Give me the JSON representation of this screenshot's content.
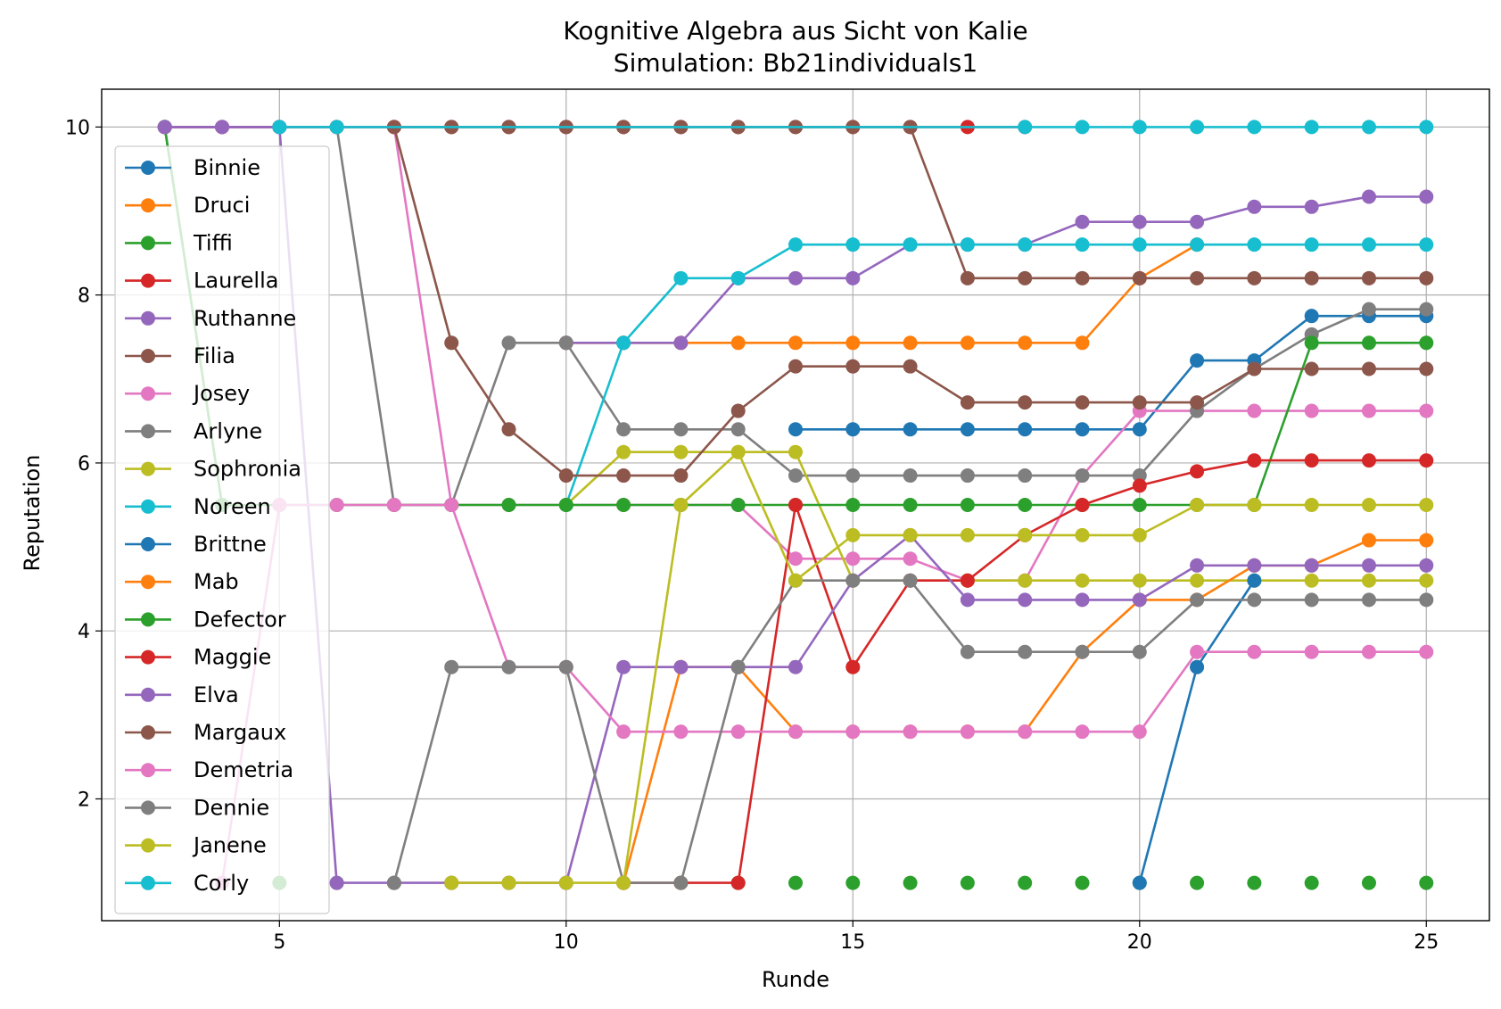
{
  "chart_data": {
    "type": "line",
    "title": "Kognitive Algebra aus Sicht von Kalie",
    "subtitle": "Simulation: Bb21individuals1",
    "xlabel": "Runde",
    "ylabel": "Reputation",
    "xlim": [
      1.9,
      26.1
    ],
    "ylim": [
      0.55,
      10.45
    ],
    "xticks": [
      5,
      10,
      15,
      20,
      25
    ],
    "yticks": [
      2,
      4,
      6,
      8,
      10
    ],
    "grid": true,
    "legend_position": "upper-left",
    "series": [
      {
        "name": "Binnie",
        "color": "#1f77b4",
        "x": [
          14,
          15,
          16,
          17,
          18,
          19,
          20,
          21,
          22,
          23,
          24,
          25
        ],
        "y": [
          6.4,
          6.4,
          6.4,
          6.4,
          6.4,
          6.4,
          6.4,
          7.22,
          7.22,
          7.75,
          7.75,
          7.75
        ]
      },
      {
        "name": "Druci",
        "color": "#ff7f0e",
        "x": [
          10,
          11,
          12,
          13,
          14,
          15,
          16,
          17,
          18,
          19,
          20,
          21
        ],
        "y": [
          7.43,
          7.43,
          7.43,
          7.43,
          7.43,
          7.43,
          7.43,
          7.43,
          7.43,
          7.43,
          8.2,
          8.6
        ]
      },
      {
        "name": "Tiffi",
        "color": "#2ca02c",
        "x": [
          3,
          4
        ],
        "y": [
          10,
          5.5
        ]
      },
      {
        "name": "Laurella",
        "color": "#d62728",
        "x": [
          3,
          4,
          5,
          6,
          7,
          8,
          9,
          10,
          11,
          12,
          13,
          14,
          15,
          16,
          17,
          18
        ],
        "y": [
          10,
          10,
          10,
          10,
          10,
          10,
          10,
          10,
          10,
          10,
          10,
          10,
          10,
          10,
          10,
          10
        ]
      },
      {
        "name": "Ruthanne",
        "color": "#9467bd",
        "x": [
          10,
          11,
          12,
          13,
          14,
          15,
          16,
          17,
          18,
          19,
          20,
          21,
          22,
          23,
          24,
          25
        ],
        "y": [
          7.43,
          7.43,
          7.43,
          8.2,
          8.2,
          8.2,
          8.6,
          8.6,
          8.6,
          8.87,
          8.87,
          8.87,
          9.05,
          9.05,
          9.17,
          9.17
        ]
      },
      {
        "name": "Filia",
        "color": "#8c564b",
        "x": [
          3,
          4,
          5,
          6,
          7,
          8,
          9,
          10,
          11,
          12,
          13,
          14,
          15,
          16,
          17,
          18,
          19,
          20,
          21,
          22,
          23,
          24,
          25
        ],
        "y": [
          10,
          10,
          10,
          10,
          10,
          10,
          10,
          10,
          10,
          10,
          10,
          10,
          10,
          10,
          8.2,
          8.2,
          8.2,
          8.2,
          8.2,
          8.2,
          8.2,
          8.2,
          8.2
        ]
      },
      {
        "name": "Josey",
        "color": "#e377c2",
        "x": [
          3,
          4,
          5,
          6,
          7,
          8,
          9,
          10,
          11,
          12,
          13,
          14,
          15,
          16,
          17,
          18,
          19,
          20,
          21,
          22,
          23,
          24,
          25
        ],
        "y": [
          10,
          10,
          10,
          10,
          10,
          5.5,
          5.5,
          5.5,
          5.5,
          5.5,
          5.5,
          4.86,
          4.86,
          4.86,
          4.6,
          4.6,
          5.85,
          6.62,
          6.62,
          6.62,
          6.62,
          6.62,
          6.62
        ]
      },
      {
        "name": "Arlyne",
        "color": "#7f7f7f",
        "x": [
          5,
          6,
          7,
          8,
          9,
          10,
          11,
          12,
          13,
          14,
          15,
          16,
          17,
          18,
          19,
          20,
          21,
          22,
          23,
          24,
          25
        ],
        "y": [
          10,
          10,
          5.5,
          5.5,
          7.43,
          7.43,
          6.4,
          6.4,
          6.4,
          5.85,
          5.85,
          5.85,
          5.85,
          5.85,
          5.85,
          5.85,
          6.62,
          7.12,
          7.53,
          7.83,
          7.83
        ]
      },
      {
        "name": "Sophronia",
        "color": "#bcbd22",
        "x": [
          10,
          11,
          12,
          13,
          14,
          15,
          16,
          17,
          18,
          19,
          20,
          21,
          22,
          23,
          24,
          25
        ],
        "y": [
          5.5,
          6.13,
          6.13,
          6.13,
          6.13,
          4.6,
          4.6,
          4.6,
          4.6,
          4.6,
          4.6,
          4.6,
          4.6,
          4.6,
          4.6,
          4.6
        ]
      },
      {
        "name": "Noreen",
        "color": "#17becf",
        "x": [
          10,
          11,
          12,
          13,
          14,
          15,
          16,
          17,
          18,
          19,
          20,
          21,
          22,
          23,
          24,
          25
        ],
        "y": [
          5.5,
          7.43,
          8.2,
          8.2,
          8.6,
          8.6,
          8.6,
          8.6,
          8.6,
          8.6,
          8.6,
          8.6,
          8.6,
          8.6,
          8.6,
          8.6
        ]
      },
      {
        "name": "Brittne",
        "color": "#1f77b4",
        "x": [
          20,
          21,
          22
        ],
        "y": [
          1,
          3.57,
          4.6
        ]
      },
      {
        "name": "Mab",
        "color": "#ff7f0e",
        "x": [
          11,
          12,
          13,
          14,
          15,
          16,
          17,
          18,
          19,
          20,
          21,
          22,
          23,
          24,
          25
        ],
        "y": [
          1,
          3.57,
          3.57,
          2.8,
          2.8,
          2.8,
          2.8,
          2.8,
          3.75,
          4.37,
          4.37,
          4.78,
          4.78,
          5.08,
          5.08
        ]
      },
      {
        "name": "Defector",
        "color": "#2ca02c",
        "x": [
          3,
          4,
          5,
          6,
          7,
          8,
          9,
          10,
          11,
          12,
          13,
          14,
          15,
          16,
          17,
          18,
          19,
          20,
          21,
          22,
          23,
          24,
          25
        ],
        "y": [
          10,
          5.5,
          5.5,
          5.5,
          5.5,
          5.5,
          5.5,
          5.5,
          5.5,
          5.5,
          5.5,
          5.5,
          5.5,
          5.5,
          5.5,
          5.5,
          5.5,
          5.5,
          5.5,
          5.5,
          7.43,
          7.43,
          7.43
        ]
      },
      {
        "name": "Maggie",
        "color": "#d62728",
        "x": [
          11,
          12,
          13,
          14,
          15,
          16,
          17,
          18,
          19,
          20,
          21,
          22,
          23,
          24,
          25
        ],
        "y": [
          1,
          1,
          1,
          5.5,
          3.57,
          4.6,
          4.6,
          5.14,
          5.5,
          5.73,
          5.9,
          6.03,
          6.03,
          6.03,
          6.03
        ]
      },
      {
        "name": "Elva",
        "color": "#9467bd",
        "x": [
          3,
          4,
          5,
          6,
          7,
          8,
          9,
          10,
          11,
          12,
          13,
          14,
          15,
          16,
          17,
          18,
          19,
          20,
          21,
          22,
          23,
          24,
          25
        ],
        "y": [
          10,
          10,
          10,
          1,
          1,
          1,
          1,
          1,
          3.57,
          3.57,
          3.57,
          3.57,
          4.6,
          5.14,
          4.37,
          4.37,
          4.37,
          4.37,
          4.78,
          4.78,
          4.78,
          4.78,
          4.78
        ]
      },
      {
        "name": "Margaux",
        "color": "#8c564b",
        "x": [
          7,
          8,
          9,
          10,
          11,
          12,
          13,
          14,
          15,
          16,
          17,
          18,
          19,
          20,
          21,
          22,
          23,
          24,
          25
        ],
        "y": [
          10,
          7.43,
          6.4,
          5.85,
          5.85,
          5.85,
          6.62,
          7.15,
          7.15,
          7.15,
          6.72,
          6.72,
          6.72,
          6.72,
          6.72,
          7.12,
          7.12,
          7.12,
          7.12
        ]
      },
      {
        "name": "Demetria",
        "color": "#e377c2",
        "x": [
          4,
          5,
          6,
          7,
          8,
          9,
          10,
          11,
          12,
          13,
          14,
          15,
          16,
          17,
          18,
          19,
          20,
          21,
          22,
          23,
          24,
          25
        ],
        "y": [
          1,
          5.5,
          5.5,
          5.5,
          5.5,
          3.57,
          3.57,
          2.8,
          2.8,
          2.8,
          2.8,
          2.8,
          2.8,
          2.8,
          2.8,
          2.8,
          2.8,
          3.75,
          3.75,
          3.75,
          3.75,
          3.75
        ]
      },
      {
        "name": "Dennie",
        "color": "#7f7f7f",
        "x": [
          7,
          8,
          9,
          10,
          11,
          12,
          13,
          14,
          15,
          16,
          17,
          18,
          19,
          20,
          21,
          22,
          23,
          24,
          25
        ],
        "y": [
          1,
          3.57,
          3.57,
          3.57,
          1,
          1,
          3.57,
          4.6,
          4.6,
          4.6,
          3.75,
          3.75,
          3.75,
          3.75,
          4.37,
          4.37,
          4.37,
          4.37,
          4.37
        ]
      },
      {
        "name": "Janene",
        "color": "#bcbd22",
        "x": [
          8,
          9,
          10,
          11,
          12,
          13,
          14,
          15,
          16,
          17,
          18,
          19,
          20,
          21,
          22,
          23,
          24,
          25
        ],
        "y": [
          1,
          1,
          1,
          1,
          5.5,
          6.13,
          4.6,
          5.14,
          5.14,
          5.14,
          5.14,
          5.14,
          5.14,
          5.5,
          5.5,
          5.5,
          5.5,
          5.5
        ]
      },
      {
        "name": "Corly",
        "color": "#17becf",
        "x": [
          5,
          6,
          18,
          19,
          20,
          21,
          22,
          23,
          24,
          25
        ],
        "y": [
          10,
          10,
          10,
          10,
          10,
          10,
          10,
          10,
          10,
          10
        ]
      }
    ],
    "extra_markers": [
      {
        "color": "#2ca02c",
        "points": [
          [
            3,
            10
          ],
          [
            5,
            1
          ],
          [
            6,
            1
          ],
          [
            7,
            1
          ],
          [
            8,
            1
          ],
          [
            9,
            1
          ],
          [
            10,
            1
          ],
          [
            11,
            1
          ],
          [
            12,
            1
          ],
          [
            13,
            1
          ],
          [
            14,
            1
          ],
          [
            15,
            1
          ],
          [
            16,
            1
          ],
          [
            17,
            1
          ],
          [
            18,
            1
          ],
          [
            19,
            1
          ],
          [
            20,
            1
          ],
          [
            21,
            1
          ],
          [
            22,
            1
          ],
          [
            23,
            1
          ],
          [
            24,
            1
          ],
          [
            25,
            1
          ]
        ]
      }
    ]
  }
}
